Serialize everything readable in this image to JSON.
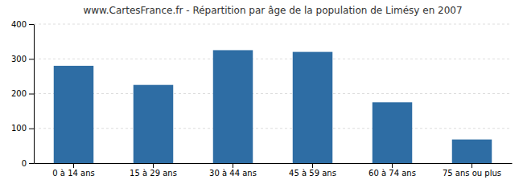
{
  "chart_data": {
    "type": "bar",
    "title": "www.CartesFrance.fr - Répartition par âge de la population de Limésy en 2007",
    "categories": [
      "0 à 14 ans",
      "15 à 29 ans",
      "30 à 44 ans",
      "45 à 59 ans",
      "60 à 74 ans",
      "75 ans ou plus"
    ],
    "values": [
      280,
      225,
      325,
      320,
      175,
      68
    ],
    "color": "#2E6DA4",
    "ylim": [
      0,
      400
    ],
    "yticks": [
      0,
      100,
      200,
      300,
      400
    ],
    "grid": true
  }
}
